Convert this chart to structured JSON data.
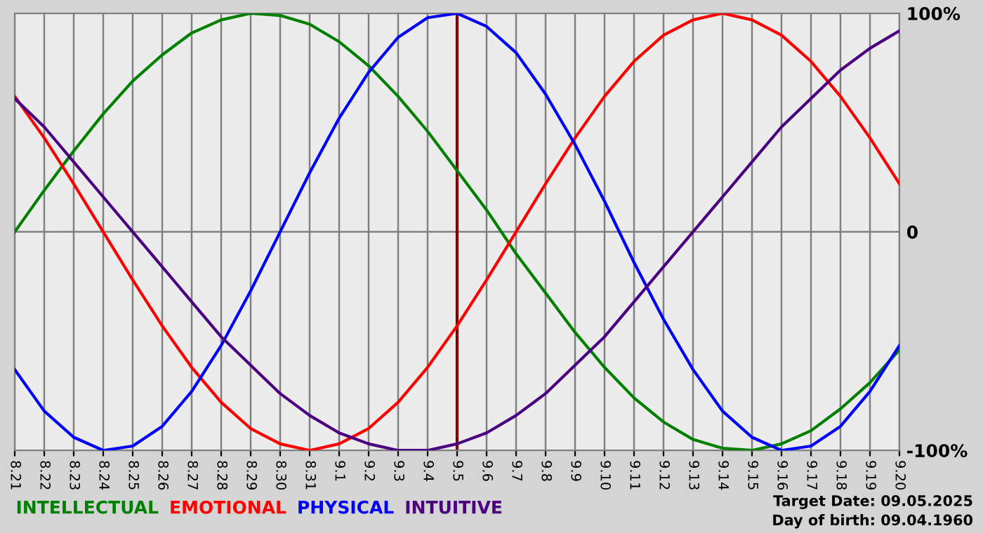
{
  "chart_data": {
    "type": "line",
    "categories": [
      "8.21",
      "8.22",
      "8.23",
      "8.24",
      "8.25",
      "8.26",
      "8.27",
      "8.28",
      "8.29",
      "8.30",
      "8.31",
      "9.1",
      "9.2",
      "9.3",
      "9.4",
      "9.5",
      "9.6",
      "9.7",
      "9.8",
      "9.9",
      "9.10",
      "9.11",
      "9.12",
      "9.13",
      "9.14",
      "9.15",
      "9.16",
      "9.17",
      "9.18",
      "9.19",
      "9.20"
    ],
    "series": [
      {
        "name": "INTELLECTUAL",
        "color": "#008000",
        "values": [
          0,
          19,
          37,
          54,
          69,
          81,
          91,
          97,
          100,
          99,
          95,
          87,
          76,
          62,
          46,
          28,
          10,
          -10,
          -28,
          -46,
          -62,
          -76,
          -87,
          -95,
          -99,
          -100,
          -97,
          -91,
          -81,
          -69,
          -54
        ]
      },
      {
        "name": "EMOTIONAL",
        "color": "#ff0000",
        "values": [
          62,
          43,
          22,
          0,
          -22,
          -43,
          -62,
          -78,
          -90,
          -97,
          -100,
          -97,
          -90,
          -78,
          -62,
          -43,
          -22,
          0,
          22,
          43,
          62,
          78,
          90,
          97,
          100,
          97,
          90,
          78,
          62,
          43,
          22
        ]
      },
      {
        "name": "PHYSICAL",
        "color": "#0000ff",
        "values": [
          -63,
          -82,
          -94,
          -100,
          -98,
          -89,
          -73,
          -52,
          -27,
          0,
          27,
          52,
          73,
          89,
          98,
          100,
          94,
          82,
          63,
          40,
          14,
          -14,
          -40,
          -63,
          -82,
          -94,
          -100,
          -98,
          -89,
          -73,
          -52
        ]
      },
      {
        "name": "INTUITIVE",
        "color": "#4b0082",
        "values": [
          61,
          48,
          32,
          16,
          0,
          -16,
          -32,
          -48,
          -61,
          -74,
          -84,
          -92,
          -97,
          -100,
          -100,
          -97,
          -92,
          -84,
          -74,
          -61,
          -48,
          -32,
          -16,
          0,
          16,
          32,
          48,
          61,
          74,
          84,
          92
        ]
      }
    ],
    "ylim": [
      -100,
      100
    ],
    "yticks": [
      {
        "value": 100,
        "label": "100%"
      },
      0,
      {
        "value": -100,
        "label": "-100%"
      }
    ],
    "grid": true,
    "legend": "bottom left",
    "ref_lines": [
      {
        "axis": "x",
        "value": "9.5",
        "color": "#800000"
      }
    ],
    "annotations": [
      "Target Date: 09.05.2025",
      "Day of birth: 09.04.1960"
    ]
  }
}
